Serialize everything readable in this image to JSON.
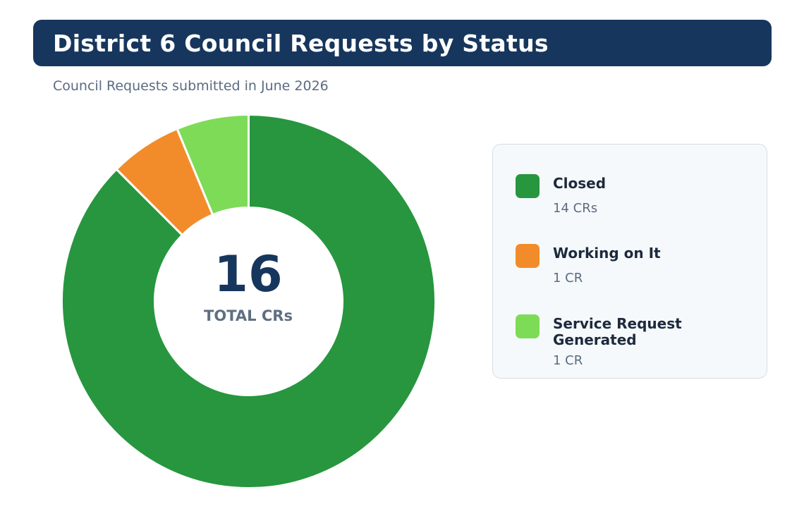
{
  "header": {
    "title": "District 6 Council Requests by Status",
    "subtitle": "Council Requests submitted in June 2026"
  },
  "center": {
    "total": "16",
    "label": "TOTAL CRs"
  },
  "legend": [
    {
      "name": "Closed",
      "count_text": "14 CRs",
      "color": "#27963e"
    },
    {
      "name": "Working on It",
      "count_text": "1 CR",
      "color": "#f28c2a"
    },
    {
      "name": "Service Request Generated",
      "count_text": "1 CR",
      "color": "#7ddb58"
    }
  ],
  "chart_data": {
    "type": "pie",
    "variant": "donut",
    "title": "District 6 Council Requests by Status",
    "subtitle": "Council Requests submitted in June 2026",
    "categories": [
      "Closed",
      "Working on It",
      "Service Request Generated"
    ],
    "values": [
      14,
      1,
      1
    ],
    "colors": [
      "#27963e",
      "#f28c2a",
      "#7ddb58"
    ],
    "total": 16,
    "center_label": "TOTAL CRs",
    "legend_position": "right"
  }
}
